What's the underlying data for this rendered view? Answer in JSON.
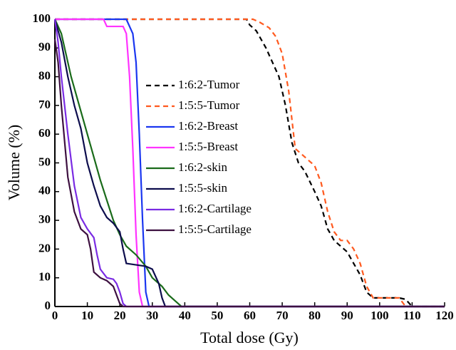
{
  "chart_data": {
    "type": "line",
    "x_label": "Total dose (Gy)",
    "y_label": "Volume (%)",
    "xlim": [
      0,
      120
    ],
    "ylim": [
      0,
      100
    ],
    "xticks": [
      0,
      10,
      20,
      30,
      40,
      50,
      60,
      70,
      80,
      90,
      100,
      110,
      120
    ],
    "yticks": [
      0,
      10,
      20,
      30,
      40,
      50,
      60,
      70,
      80,
      90,
      100
    ],
    "series": [
      {
        "name": "1:6:2-Tumor",
        "color": "#000000",
        "dash": true,
        "x": [
          0,
          59,
          60,
          62,
          65,
          67,
          69,
          71,
          73,
          75,
          77,
          80,
          82,
          84,
          86,
          88,
          90,
          92,
          94,
          96,
          98,
          100,
          106,
          108,
          110,
          120
        ],
        "values": [
          100,
          100,
          98,
          96,
          90,
          85,
          80,
          70,
          57,
          50,
          47,
          40,
          35,
          27,
          23,
          21,
          19,
          15,
          11,
          5,
          3,
          3,
          3,
          2.5,
          0,
          0
        ]
      },
      {
        "name": "1:5:5-Tumor",
        "color": "#ff5a1f",
        "dash": true,
        "x": [
          0,
          61,
          63,
          66,
          68,
          70,
          72,
          74,
          76,
          78,
          80,
          82,
          84,
          86,
          88,
          90,
          92,
          94,
          96,
          98,
          106,
          108,
          120
        ],
        "values": [
          100,
          100,
          99,
          97,
          94,
          88,
          75,
          55,
          53,
          51,
          49,
          43,
          33,
          26,
          23,
          23,
          20,
          15,
          7,
          3,
          3,
          0,
          0
        ]
      },
      {
        "name": "1:6:2-Breast",
        "color": "#1a36f0",
        "dash": false,
        "x": [
          0,
          22,
          24,
          25,
          26,
          27,
          28,
          29,
          120
        ],
        "values": [
          100,
          100,
          95,
          85,
          60,
          30,
          5,
          0,
          0
        ]
      },
      {
        "name": "1:5:5-Breast",
        "color": "#ff33ff",
        "dash": false,
        "x": [
          0,
          15,
          16,
          21,
          22,
          23,
          24,
          25,
          26,
          27,
          120
        ],
        "values": [
          100,
          100,
          97.5,
          97.5,
          95,
          80,
          55,
          25,
          5,
          0,
          0
        ]
      },
      {
        "name": "1:6:2-skin",
        "color": "#1a6b1a",
        "dash": false,
        "x": [
          0,
          2,
          5,
          8,
          10,
          12,
          14,
          16,
          18,
          20,
          22,
          25,
          28,
          30,
          33,
          35,
          37,
          39,
          120
        ],
        "values": [
          100,
          95,
          80,
          68,
          60,
          52,
          44,
          37,
          30,
          25,
          21,
          18,
          14,
          10,
          7,
          4,
          2,
          0,
          0
        ]
      },
      {
        "name": "1:5:5-skin",
        "color": "#0d0d4d",
        "dash": false,
        "x": [
          0,
          2,
          4,
          6,
          8,
          10,
          12,
          14,
          16,
          18,
          20,
          21,
          22,
          25,
          28,
          30,
          32,
          33,
          34,
          120
        ],
        "values": [
          100,
          92,
          80,
          70,
          62,
          50,
          42,
          35,
          31,
          29,
          26,
          20,
          15,
          14.5,
          14,
          13,
          8,
          3,
          0,
          0
        ]
      },
      {
        "name": "1:6:2-Cartilage",
        "color": "#7a2be3",
        "dash": false,
        "x": [
          0,
          1,
          2,
          4,
          6,
          8,
          10,
          12,
          13,
          14,
          16,
          18,
          19,
          20,
          21,
          22,
          120
        ],
        "values": [
          100,
          92,
          80,
          60,
          42,
          31,
          27,
          24,
          18,
          13,
          10,
          9.5,
          8,
          5,
          1,
          0,
          0
        ]
      },
      {
        "name": "1:5:5-Cartilage",
        "color": "#3d1040",
        "dash": false,
        "x": [
          0,
          1,
          2,
          4,
          6,
          8,
          10,
          11,
          12,
          14,
          16,
          17,
          18,
          19,
          20,
          21,
          120
        ],
        "values": [
          93,
          85,
          70,
          45,
          33,
          27,
          25,
          20,
          12,
          10,
          9,
          8,
          7,
          4,
          1,
          0,
          0
        ]
      }
    ]
  }
}
